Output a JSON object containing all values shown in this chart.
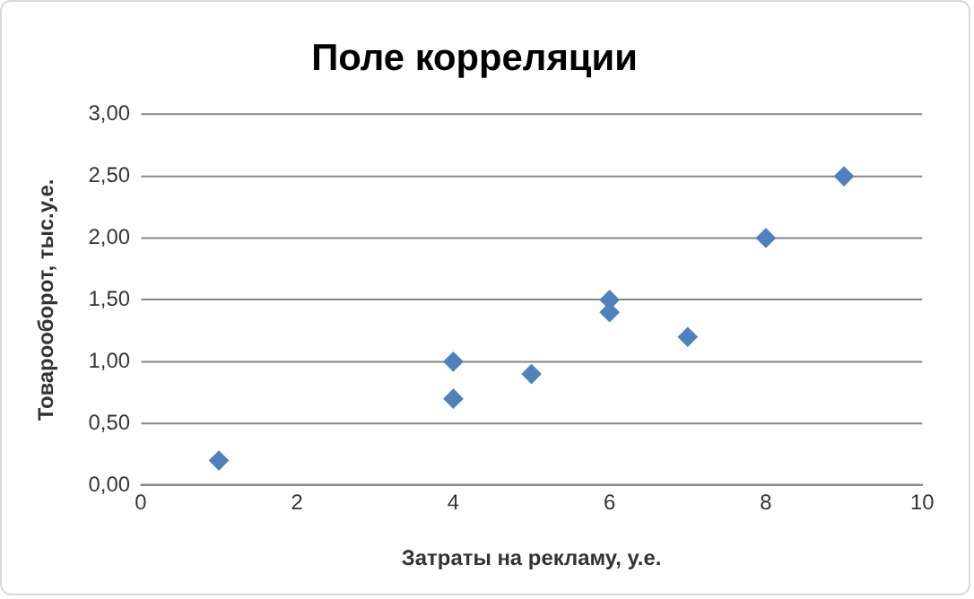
{
  "chart_data": {
    "type": "scatter",
    "title": "Поле корреляции",
    "xlabel": "Затраты на рекламу, у.е.",
    "ylabel": "Товарооборот, тыс.у.е.",
    "x": [
      1,
      4,
      4,
      5,
      6,
      6,
      7,
      8,
      9
    ],
    "series": [
      {
        "color": "#4f81bd",
        "values": [
          0.2,
          1.0,
          0.7,
          0.9,
          1.5,
          1.4,
          1.2,
          2.0,
          2.5
        ]
      }
    ],
    "xlim": [
      0,
      10
    ],
    "xticks": [
      0,
      2,
      4,
      6,
      8,
      10
    ],
    "ylim": [
      0,
      3
    ],
    "yticks": [
      {
        "value": 0,
        "label": "0,00"
      },
      {
        "value": 0.5,
        "label": "0,50"
      },
      {
        "value": 1,
        "label": "1,00"
      },
      {
        "value": 1.5,
        "label": "1,50"
      },
      {
        "value": 2,
        "label": "2,00"
      },
      {
        "value": 2.5,
        "label": "2,50"
      },
      {
        "value": 3,
        "label": "3,00"
      }
    ],
    "grid": "y",
    "legend": false,
    "marker": "diamond"
  }
}
